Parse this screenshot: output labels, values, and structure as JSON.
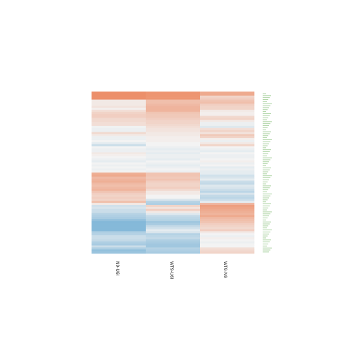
{
  "chart_data": {
    "type": "heatmap",
    "columns": [
      "N9-U6I",
      "WT9-U6I",
      "WT9-N9"
    ],
    "row_count": 80,
    "colors": {
      "low": "#6aaad2",
      "mid": "#f3f3f3",
      "high": "#ec8a63"
    },
    "value_range": [
      -1,
      1
    ],
    "series": [
      {
        "name": "N9-U6I",
        "values": [
          0.95,
          0.95,
          0.95,
          0.95,
          0.1,
          0.1,
          0.1,
          0.15,
          0.05,
          0.2,
          0.3,
          0.35,
          0.35,
          0.25,
          0.25,
          0.2,
          0.2,
          -0.02,
          -0.05,
          -0.05,
          0.25,
          0.1,
          -0.05,
          -0.05,
          0.0,
          -0.1,
          -0.3,
          0.0,
          -0.05,
          -0.05,
          0.1,
          0.05,
          0.0,
          -0.05,
          -0.1,
          0.0,
          -0.05,
          0.0,
          -0.05,
          0.0,
          0.65,
          0.7,
          0.55,
          0.6,
          0.65,
          0.55,
          0.5,
          0.55,
          0.6,
          0.45,
          0.35,
          0.3,
          0.35,
          0.3,
          0.5,
          0.1,
          -0.25,
          -0.2,
          -0.3,
          -0.3,
          -0.45,
          -0.5,
          -0.55,
          -0.7,
          -0.8,
          -0.8,
          -0.8,
          -0.8,
          -0.8,
          -0.5,
          -0.45,
          -0.3,
          -0.3,
          -0.35,
          -0.5,
          -0.55,
          -0.3,
          -0.5,
          -0.7,
          -0.65
        ]
      },
      {
        "name": "WT9-U6I",
        "values": [
          0.9,
          0.9,
          0.9,
          0.9,
          0.5,
          0.5,
          0.55,
          0.6,
          0.6,
          0.6,
          0.45,
          0.4,
          0.4,
          0.35,
          0.3,
          0.3,
          0.25,
          0.2,
          0.15,
          0.15,
          0.1,
          0.1,
          0.05,
          0.05,
          0.05,
          0.0,
          0.0,
          -0.05,
          -0.1,
          -0.05,
          -0.1,
          -0.05,
          -0.05,
          -0.1,
          0.0,
          -0.05,
          -0.1,
          -0.05,
          0.0,
          -0.05,
          0.45,
          0.45,
          0.4,
          0.45,
          0.35,
          0.3,
          0.3,
          0.35,
          0.25,
          0.1,
          0.1,
          0.0,
          0.0,
          -0.2,
          -0.45,
          -0.5,
          0.3,
          0.15,
          0.35,
          0.1,
          -0.15,
          -0.35,
          -0.4,
          -0.45,
          -0.6,
          -0.55,
          -0.35,
          -0.25,
          -0.1,
          -0.2,
          -0.45,
          -0.4,
          -0.35,
          -0.5,
          -0.55,
          -0.6,
          -0.6,
          -0.45,
          -0.5,
          -0.55
        ]
      },
      {
        "name": "WT9-N9",
        "values": [
          0.7,
          0.7,
          0.3,
          0.35,
          0.45,
          0.5,
          0.35,
          0.3,
          0.3,
          0.1,
          0.05,
          0.05,
          0.25,
          0.3,
          0.1,
          -0.05,
          -0.05,
          -0.15,
          0.2,
          0.3,
          0.15,
          0.4,
          0.3,
          0.05,
          -0.05,
          0.1,
          0.3,
          0.0,
          -0.05,
          -0.1,
          0.0,
          -0.05,
          -0.05,
          0.0,
          0.05,
          -0.05,
          0.0,
          -0.1,
          -0.05,
          -0.1,
          -0.1,
          -0.25,
          -0.2,
          -0.1,
          -0.3,
          -0.35,
          -0.15,
          -0.2,
          -0.3,
          -0.4,
          -0.2,
          -0.35,
          -0.4,
          -0.3,
          -0.1,
          0.6,
          0.8,
          0.75,
          0.7,
          0.65,
          0.6,
          0.7,
          0.55,
          0.5,
          0.45,
          0.35,
          0.3,
          0.25,
          0.35,
          0.1,
          0.0,
          -0.05,
          0.05,
          0.0,
          -0.05,
          0.0,
          0.0,
          0.2,
          0.25,
          0.3
        ]
      }
    ]
  }
}
